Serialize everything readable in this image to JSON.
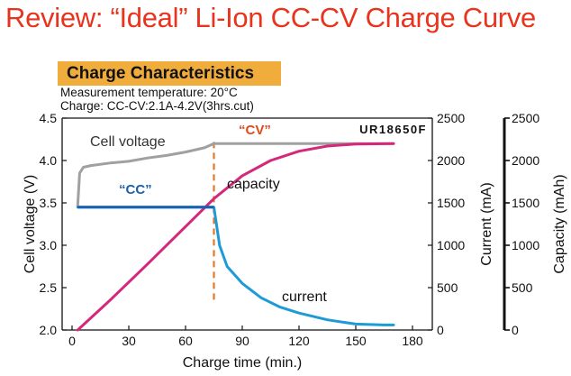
{
  "slide": {
    "title": "Review:  “Ideal” Li-Ion CC-CV Charge Curve",
    "badge": "Charge Characteristics",
    "meta_line1": "Measurement temperature: 20°C",
    "meta_line2": "Charge: CC-CV:2.1A-4.2V(3hrs.cut)"
  },
  "chart_data": {
    "type": "line",
    "model_label": "UR18650F",
    "xlabel": "Charge time (min.)",
    "ylabel_left": "Cell voltage (V)",
    "ylabel_right1": "Current (mA)",
    "ylabel_right2": "Capacity (mAh)",
    "xlim": [
      0,
      180
    ],
    "xticks": [
      "0",
      "30",
      "60",
      "90",
      "120",
      "150",
      "180"
    ],
    "ylim_left": [
      2.0,
      4.5
    ],
    "yticks_left": [
      "2.0",
      "2.5",
      "3.0",
      "3.5",
      "4.0",
      "4.5"
    ],
    "ylim_right": [
      0,
      2500
    ],
    "yticks_right1": [
      "0",
      "500",
      "1000",
      "1500",
      "2000",
      "2500"
    ],
    "yticks_right2": [
      "0",
      "500",
      "1000",
      "1500",
      "2000",
      "2500"
    ],
    "cv_transition_time": 75,
    "colors": {
      "voltage": "#a0a0a0",
      "current": "#1e9bd7",
      "current_cc": "#1a5fb0",
      "capacity": "#d4287a",
      "divider": "#e07a2a",
      "label_cc": "#1a5fb0",
      "label_cv": "#e04a1a"
    },
    "annotations": {
      "cell_voltage": "Cell voltage",
      "cv": "“CV”",
      "cc": "“CC”",
      "capacity": "capacity",
      "current": "current"
    },
    "series": [
      {
        "name": "Cell voltage",
        "axis": "left",
        "points": [
          [
            3,
            3.47
          ],
          [
            4,
            3.85
          ],
          [
            6,
            3.92
          ],
          [
            10,
            3.94
          ],
          [
            20,
            3.97
          ],
          [
            30,
            3.99
          ],
          [
            40,
            4.03
          ],
          [
            50,
            4.06
          ],
          [
            60,
            4.1
          ],
          [
            70,
            4.15
          ],
          [
            75,
            4.2
          ],
          [
            90,
            4.2
          ],
          [
            120,
            4.2
          ],
          [
            150,
            4.2
          ],
          [
            170,
            4.2
          ]
        ]
      },
      {
        "name": "current",
        "axis": "right",
        "points": [
          [
            3,
            1450
          ],
          [
            30,
            1450
          ],
          [
            60,
            1450
          ],
          [
            75,
            1450
          ],
          [
            78,
            1000
          ],
          [
            82,
            750
          ],
          [
            90,
            550
          ],
          [
            100,
            380
          ],
          [
            110,
            270
          ],
          [
            120,
            200
          ],
          [
            135,
            120
          ],
          [
            150,
            70
          ],
          [
            165,
            60
          ],
          [
            170,
            60
          ]
        ]
      },
      {
        "name": "capacity",
        "axis": "right",
        "points": [
          [
            3,
            0
          ],
          [
            20,
            350
          ],
          [
            40,
            780
          ],
          [
            60,
            1220
          ],
          [
            75,
            1550
          ],
          [
            90,
            1820
          ],
          [
            105,
            2000
          ],
          [
            120,
            2110
          ],
          [
            135,
            2170
          ],
          [
            150,
            2195
          ],
          [
            170,
            2200
          ]
        ]
      }
    ]
  }
}
